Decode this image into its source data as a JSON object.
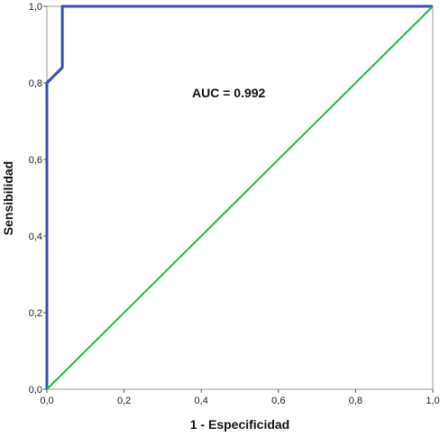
{
  "chart_data": {
    "type": "line",
    "xlabel": "1 - Especificidad",
    "ylabel": "Sensibilidad",
    "xlim": [
      0,
      1
    ],
    "ylim": [
      0,
      1
    ],
    "x_ticks": [
      "0,0",
      "0,2",
      "0,4",
      "0,6",
      "0,8",
      "1,0"
    ],
    "y_ticks": [
      "0,0",
      "0,2",
      "0,4",
      "0,6",
      "0,8",
      "1,0"
    ],
    "grid": false,
    "annotation": "AUC = 0.992",
    "series": [
      {
        "color": "#3a4fb0",
        "points": [
          [
            0.0,
            0.0
          ],
          [
            0.0,
            0.8
          ],
          [
            0.02,
            0.82
          ],
          [
            0.04,
            0.84
          ],
          [
            0.04,
            1.0
          ],
          [
            1.0,
            1.0
          ]
        ]
      },
      {
        "color": "#2db34a",
        "points": [
          [
            0.0,
            0.0
          ],
          [
            1.0,
            1.0
          ]
        ]
      }
    ]
  }
}
